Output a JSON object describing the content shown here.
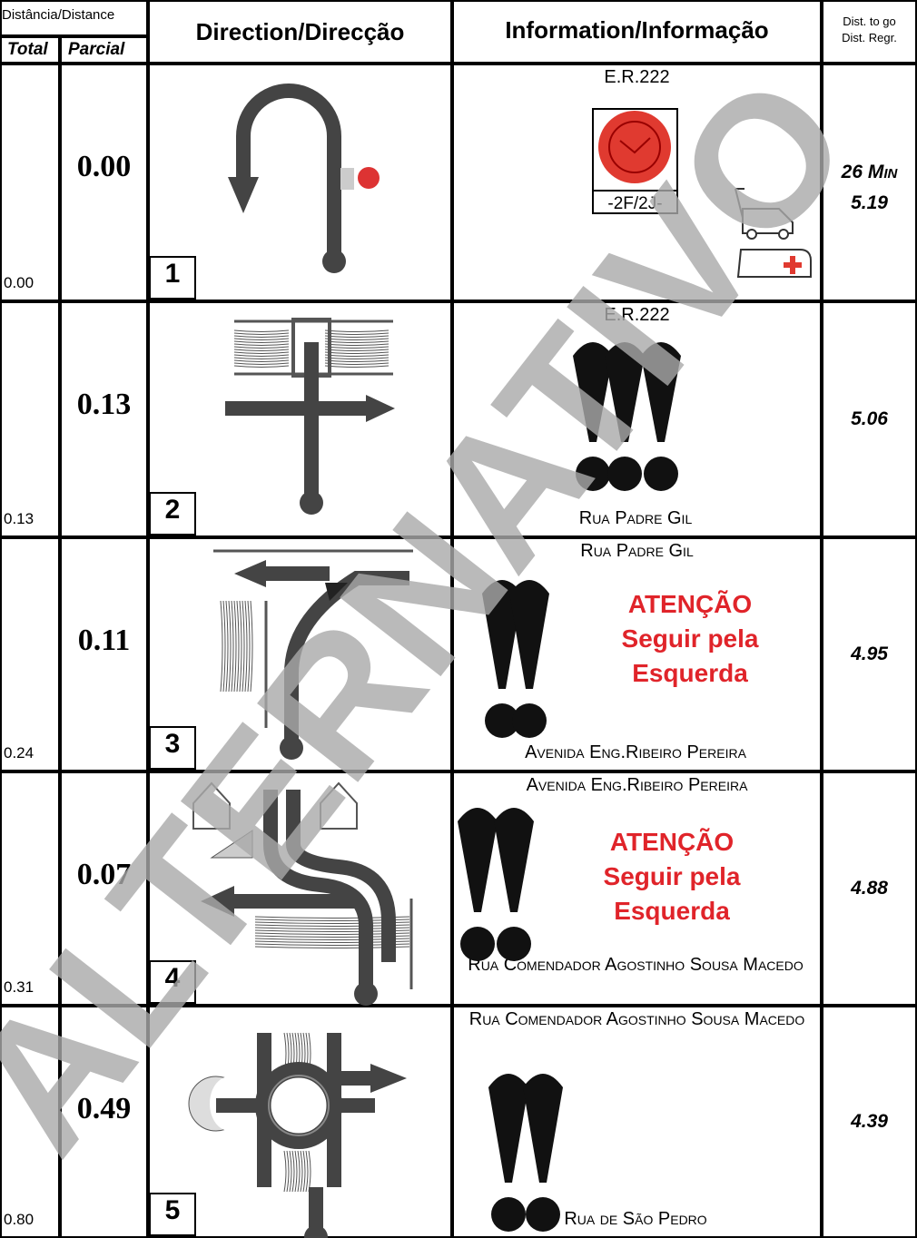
{
  "header": {
    "distance": "Distância/Distance",
    "total": "Total",
    "parcial": "Parcial",
    "direction": "Direction/Direcção",
    "information": "Information/Informação",
    "dist_to_go": "Dist. to go",
    "dist_regr": "Dist. Regr."
  },
  "rows": [
    {
      "total": "0.00",
      "parcial": "0.00",
      "number": "1",
      "info_top": "E.R.222",
      "sign_label": "-2F/2J-",
      "time": "26 Min",
      "dist_to_go": "5.19"
    },
    {
      "total": "0.13",
      "parcial": "0.13",
      "number": "2",
      "info_top": "E.R.222",
      "info_bottom": "Rua Padre Gil",
      "dist_to_go": "5.06"
    },
    {
      "total": "0.24",
      "parcial": "0.11",
      "number": "3",
      "info_top": "Rua Padre Gil",
      "warning": [
        "ATENÇÃO",
        "Seguir pela",
        "Esquerda"
      ],
      "info_bottom": "Avenida Eng.Ribeiro Pereira",
      "dist_to_go": "4.95"
    },
    {
      "total": "0.31",
      "parcial": "0.07",
      "number": "4",
      "info_top": "Avenida Eng.Ribeiro Pereira",
      "warning": [
        "ATENÇÃO",
        "Seguir pela",
        "Esquerda"
      ],
      "info_bottom": "Rua Comendador Agostinho Sousa Macedo",
      "dist_to_go": "4.88"
    },
    {
      "total": "0.80",
      "parcial": "0.49",
      "number": "5",
      "info_top": "Rua Comendador Agostinho Sousa Macedo",
      "info_bottom": "Rua de São Pedro",
      "dist_to_go": "4.39"
    }
  ],
  "watermark": "ALTERNATIVO"
}
